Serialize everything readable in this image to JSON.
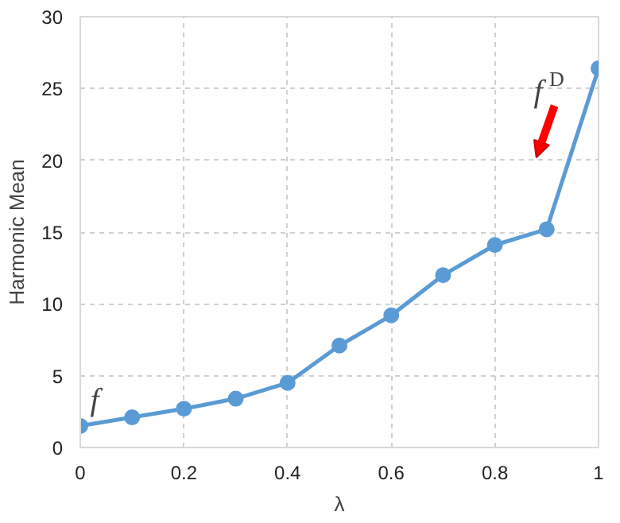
{
  "chart_data": {
    "type": "line",
    "xlabel": "λ",
    "ylabel": "Harmonic Mean",
    "x": [
      0,
      0.1,
      0.2,
      0.3,
      0.4,
      0.5,
      0.6,
      0.7,
      0.8,
      0.9,
      1
    ],
    "series": [
      {
        "color": "#5b9bd5",
        "values": [
          1.5,
          2.1,
          2.7,
          3.4,
          4.5,
          7.1,
          9.2,
          12.0,
          14.1,
          15.2,
          26.4
        ]
      }
    ],
    "xlim": [
      0,
      1
    ],
    "ylim": [
      0,
      30
    ],
    "xticks": [
      0,
      0.2,
      0.4,
      0.6,
      0.8,
      1
    ],
    "yticks": [
      0,
      5,
      10,
      15,
      20,
      25,
      30
    ],
    "grid": true,
    "marker": "circle",
    "line_style": "solid",
    "annotations": [
      {
        "text": "f",
        "x": 0,
        "y": 1.5
      },
      {
        "text": "f$^{D}$",
        "x": 1,
        "y": 26.4
      }
    ]
  }
}
